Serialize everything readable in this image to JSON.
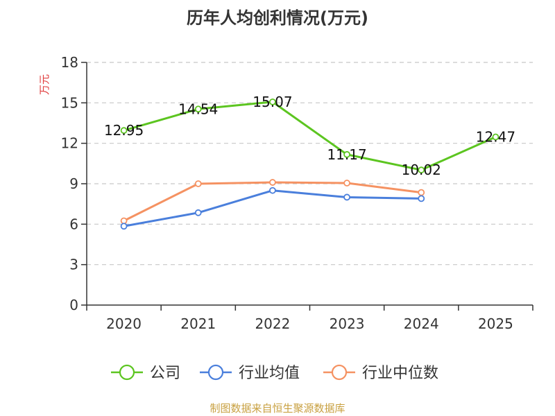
{
  "chart_data": {
    "type": "line",
    "title": "历年人均创利情况(万元)",
    "ylabel": "万元",
    "xlabel": "",
    "categories": [
      "2020",
      "2021",
      "2022",
      "2023",
      "2024",
      "2025"
    ],
    "ylim": [
      0,
      18
    ],
    "yticks": [
      0,
      3,
      6,
      9,
      12,
      15,
      18
    ],
    "grid": true,
    "legend": "bottom",
    "series": [
      {
        "name": "公司",
        "color": "#5cc520",
        "values": [
          12.95,
          14.54,
          15.07,
          11.17,
          10.02,
          12.47
        ],
        "show_labels": true
      },
      {
        "name": "行业均值",
        "color": "#4a7fdc",
        "values": [
          5.85,
          6.85,
          8.5,
          8.0,
          7.9,
          null
        ],
        "show_labels": false
      },
      {
        "name": "行业中位数",
        "color": "#f59262",
        "values": [
          6.25,
          9.0,
          9.1,
          9.05,
          8.35,
          null
        ],
        "show_labels": false
      }
    ]
  },
  "footer": {
    "source": "制图数据来自恒生聚源数据库"
  }
}
